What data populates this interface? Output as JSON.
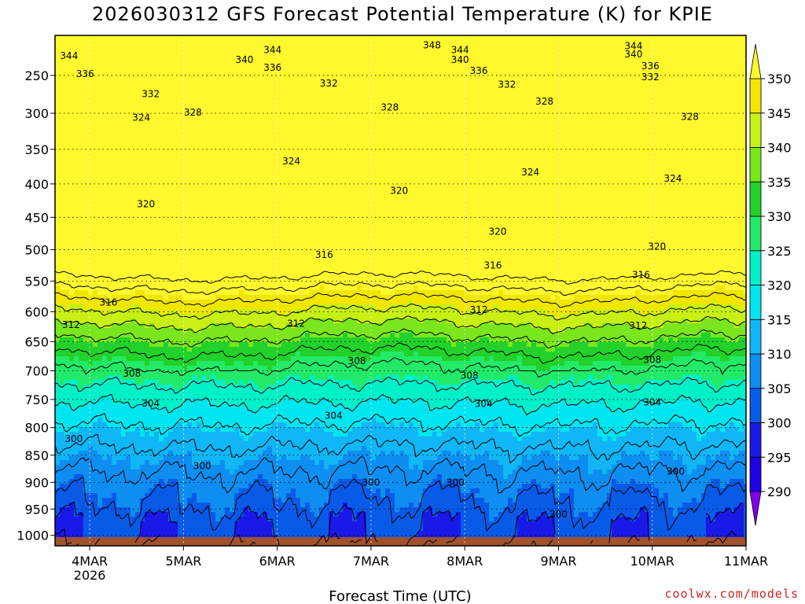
{
  "chart_data": {
    "type": "heatmap",
    "title": "2026030312 GFS Forecast Potential Temperature (K) for KPIE",
    "xlabel": "Forecast Time (UTC)",
    "ylabel": "",
    "x_ticks": [
      {
        "label": "4MAR",
        "sub": "2026",
        "day": 1
      },
      {
        "label": "5MAR",
        "sub": "",
        "day": 2
      },
      {
        "label": "6MAR",
        "sub": "",
        "day": 3
      },
      {
        "label": "7MAR",
        "sub": "",
        "day": 4
      },
      {
        "label": "8MAR",
        "sub": "",
        "day": 5
      },
      {
        "label": "9MAR",
        "sub": "",
        "day": 6
      },
      {
        "label": "10MAR",
        "sub": "",
        "day": 7
      },
      {
        "label": "11MAR",
        "sub": "",
        "day": 8
      }
    ],
    "x_range_days": [
      0.63,
      8.0
    ],
    "y_pressure_levels": [
      250,
      300,
      350,
      400,
      450,
      500,
      550,
      600,
      650,
      700,
      750,
      800,
      850,
      900,
      950,
      1000
    ],
    "y_range_hPa": [
      200,
      1020
    ],
    "colorbar": {
      "levels": [
        290,
        295,
        300,
        305,
        310,
        315,
        320,
        325,
        330,
        335,
        340,
        345,
        350
      ],
      "labels": [
        290,
        295,
        300,
        305,
        310,
        315,
        320,
        325,
        330,
        335,
        340,
        345,
        350
      ],
      "colors": [
        "#7d00e6",
        "#2000ea",
        "#1a1ae8",
        "#0a5ae8",
        "#0e8ef0",
        "#10b6f5",
        "#00e6f0",
        "#00f0c8",
        "#22ea68",
        "#22d22a",
        "#7ae61e",
        "#c8f014",
        "#f0e600",
        "#fff82c"
      ]
    },
    "contour_interval_K": 4,
    "contour_labels": [
      {
        "v": 344,
        "day": 0.78,
        "p": 225
      },
      {
        "v": 340,
        "day": 2.65,
        "p": 230
      },
      {
        "v": 344,
        "day": 2.95,
        "p": 218
      },
      {
        "v": 336,
        "day": 2.95,
        "p": 240
      },
      {
        "v": 348,
        "day": 4.65,
        "p": 212
      },
      {
        "v": 344,
        "day": 4.95,
        "p": 218
      },
      {
        "v": 340,
        "day": 4.95,
        "p": 230
      },
      {
        "v": 336,
        "day": 5.15,
        "p": 244
      },
      {
        "v": 344,
        "day": 6.8,
        "p": 213
      },
      {
        "v": 340,
        "day": 6.8,
        "p": 223
      },
      {
        "v": 336,
        "day": 6.98,
        "p": 238
      },
      {
        "v": 336,
        "day": 0.95,
        "p": 248
      },
      {
        "v": 332,
        "day": 1.65,
        "p": 274
      },
      {
        "v": 332,
        "day": 3.55,
        "p": 260
      },
      {
        "v": 332,
        "day": 5.45,
        "p": 262
      },
      {
        "v": 332,
        "day": 6.98,
        "p": 252
      },
      {
        "v": 328,
        "day": 2.1,
        "p": 299
      },
      {
        "v": 328,
        "day": 4.2,
        "p": 292
      },
      {
        "v": 328,
        "day": 5.85,
        "p": 284
      },
      {
        "v": 328,
        "day": 7.4,
        "p": 305
      },
      {
        "v": 324,
        "day": 1.55,
        "p": 306
      },
      {
        "v": 324,
        "day": 3.15,
        "p": 367
      },
      {
        "v": 324,
        "day": 5.7,
        "p": 383
      },
      {
        "v": 324,
        "day": 7.22,
        "p": 392
      },
      {
        "v": 320,
        "day": 1.6,
        "p": 430
      },
      {
        "v": 320,
        "day": 4.3,
        "p": 410
      },
      {
        "v": 320,
        "day": 5.35,
        "p": 472
      },
      {
        "v": 320,
        "day": 7.05,
        "p": 495
      },
      {
        "v": 316,
        "day": 1.2,
        "p": 585
      },
      {
        "v": 316,
        "day": 3.5,
        "p": 508
      },
      {
        "v": 316,
        "day": 5.3,
        "p": 525
      },
      {
        "v": 316,
        "day": 6.88,
        "p": 540
      },
      {
        "v": 312,
        "day": 0.8,
        "p": 622
      },
      {
        "v": 312,
        "day": 3.2,
        "p": 620
      },
      {
        "v": 312,
        "day": 5.15,
        "p": 597
      },
      {
        "v": 312,
        "day": 6.85,
        "p": 623
      },
      {
        "v": 308,
        "day": 1.45,
        "p": 705
      },
      {
        "v": 308,
        "day": 3.85,
        "p": 683
      },
      {
        "v": 308,
        "day": 5.05,
        "p": 708
      },
      {
        "v": 308,
        "day": 7.0,
        "p": 681
      },
      {
        "v": 304,
        "day": 1.65,
        "p": 757
      },
      {
        "v": 304,
        "day": 3.6,
        "p": 779
      },
      {
        "v": 304,
        "day": 5.2,
        "p": 758
      },
      {
        "v": 304,
        "day": 7.0,
        "p": 755
      },
      {
        "v": 300,
        "day": 0.83,
        "p": 820
      },
      {
        "v": 300,
        "day": 2.2,
        "p": 870
      },
      {
        "v": 300,
        "day": 4.0,
        "p": 900
      },
      {
        "v": 300,
        "day": 4.9,
        "p": 900
      },
      {
        "v": 300,
        "day": 6.0,
        "p": 960
      },
      {
        "v": 300,
        "day": 7.25,
        "p": 880
      }
    ]
  },
  "credit": "coolwx.com/models"
}
